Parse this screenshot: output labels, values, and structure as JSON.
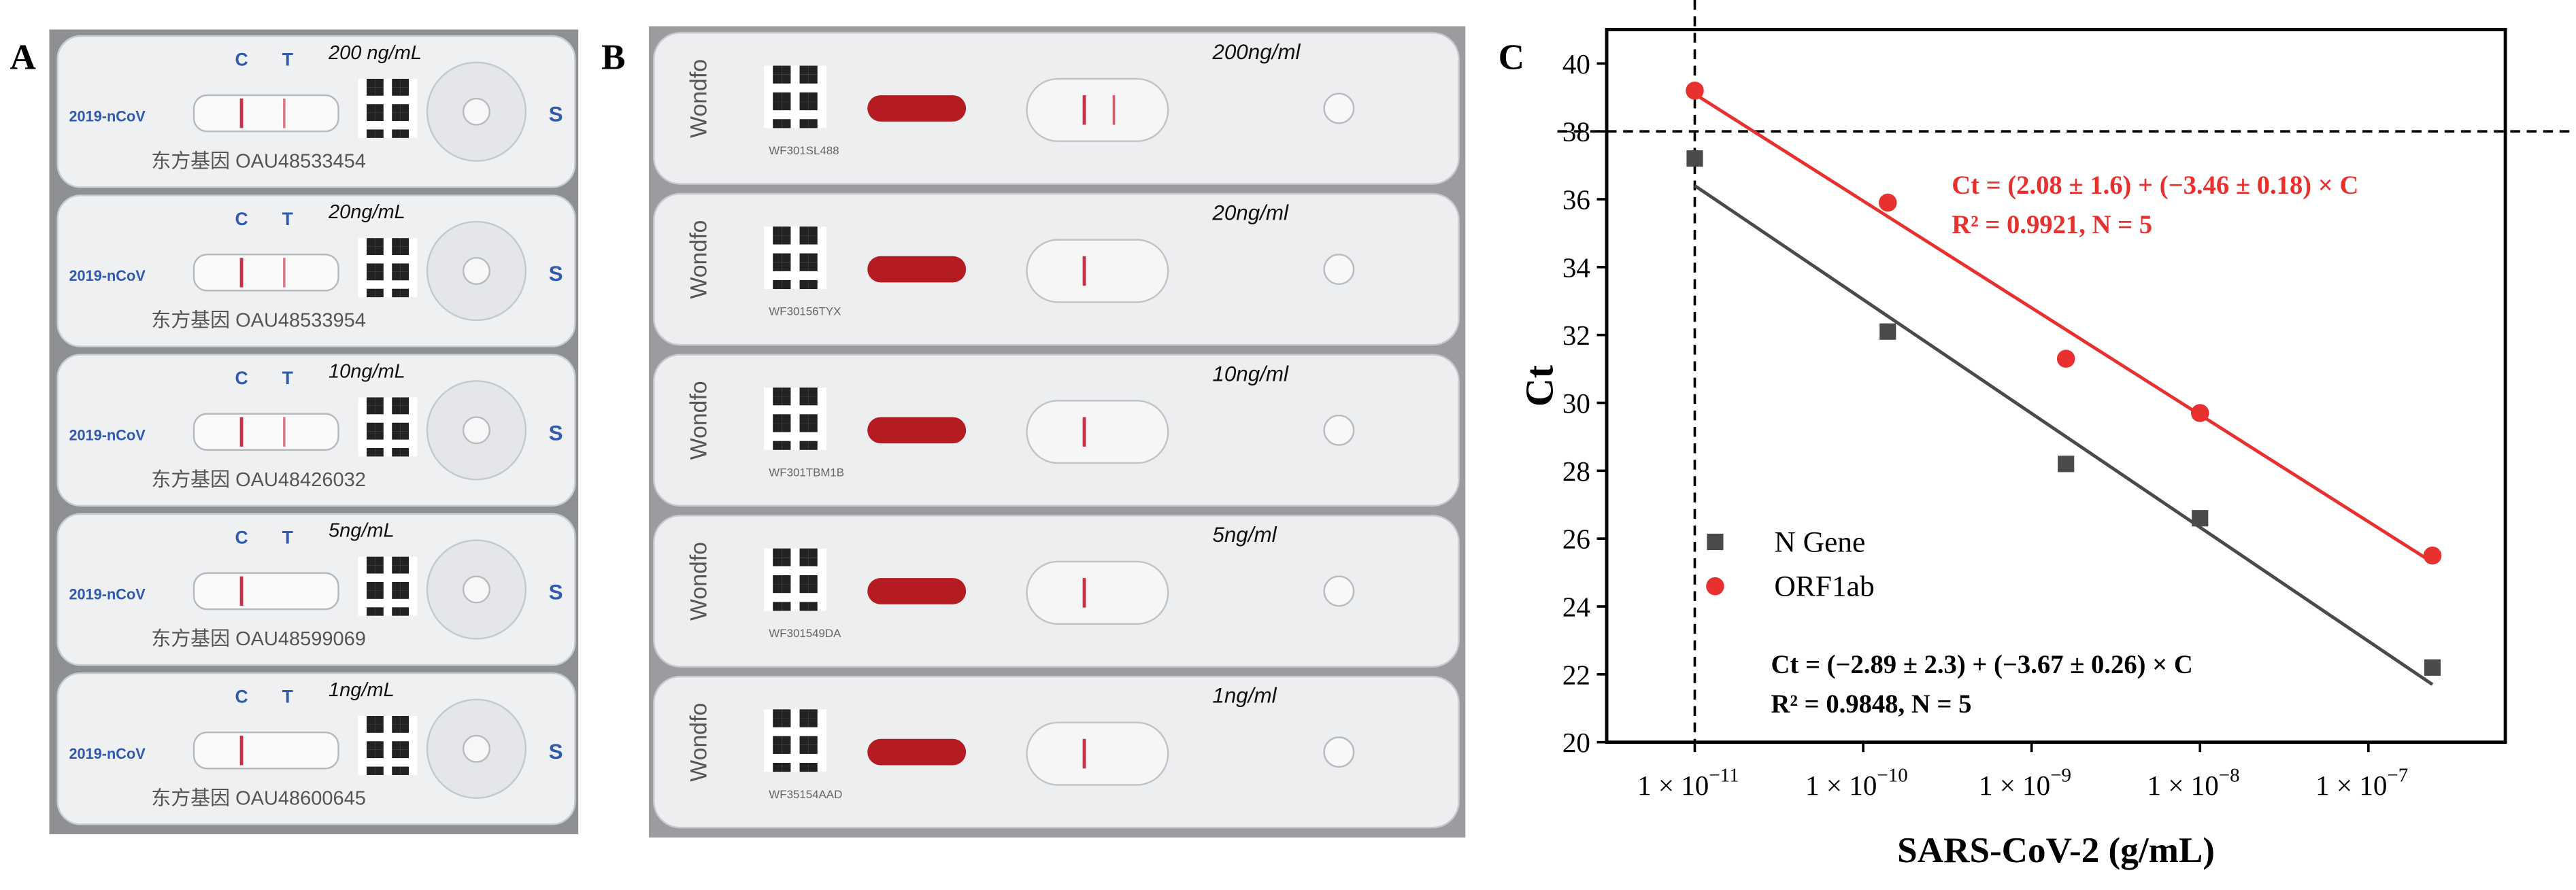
{
  "panel_a": {
    "label": "A",
    "window_labels": [
      "C",
      "T"
    ],
    "port_label": "S",
    "product": "2019-nCoV",
    "strips": [
      {
        "conc": "200 ng/mL",
        "serial": "东方基因 OAU48533454"
      },
      {
        "conc": "20ng/mL",
        "serial": "东方基因 OAU48533954"
      },
      {
        "conc": "10ng/mL",
        "serial": "东方基因 OAU48426032"
      },
      {
        "conc": "5ng/mL",
        "serial": "东方基因 OAU48599069"
      },
      {
        "conc": "1ng/mL",
        "serial": "东方基因 OAU48600645"
      }
    ]
  },
  "panel_b": {
    "label": "B",
    "brand": "Wondfo",
    "strips": [
      {
        "conc": "200ng/ml",
        "serial": "WF301SL488"
      },
      {
        "conc": "20ng/ml",
        "serial": "WF30156TYX"
      },
      {
        "conc": "10ng/ml",
        "serial": "WF301TBM1B"
      },
      {
        "conc": "5ng/ml",
        "serial": "WF301549DA"
      },
      {
        "conc": "1ng/ml",
        "serial": "WF35154AAD"
      }
    ]
  },
  "chart_data": {
    "type": "scatter",
    "panel_label": "C",
    "x_label": "SARS-CoV-2 (g/mL)",
    "y_label": "Ct",
    "xscale": "log",
    "xlim": [
      3e-12,
      6.5e-07
    ],
    "ylim": [
      20,
      41
    ],
    "xticks": [
      {
        "value": 1e-11,
        "label": "1 × 10",
        "exponent": "−11"
      },
      {
        "value": 1e-10,
        "label": "1 × 10",
        "exponent": "−10"
      },
      {
        "value": 1e-09,
        "label": "1 × 10",
        "exponent": "−9"
      },
      {
        "value": 1e-08,
        "label": "1 × 10",
        "exponent": "−8"
      },
      {
        "value": 1e-07,
        "label": "1 × 10",
        "exponent": "−7"
      }
    ],
    "yticks": [
      20,
      22,
      24,
      26,
      28,
      30,
      32,
      34,
      36,
      38,
      40
    ],
    "hlines": [
      38
    ],
    "vlines": [
      1e-11
    ],
    "legend": "lower left",
    "series": [
      {
        "name": "N Gene",
        "color": "#4a4a4a",
        "marker": "square",
        "x": [
          1e-11,
          1.4e-10,
          1.6e-09,
          1e-08,
          2.4e-07
        ],
        "values": [
          37.2,
          32.1,
          28.2,
          26.6,
          22.2
        ],
        "fit": {
          "x": [
            1e-11,
            2.4e-07
          ],
          "values": [
            36.4,
            21.7
          ]
        }
      },
      {
        "name": "ORF1ab",
        "color": "#e8312f",
        "marker": "circle",
        "x": [
          1e-11,
          1.4e-10,
          1.6e-09,
          1e-08,
          2.4e-07
        ],
        "values": [
          39.2,
          35.9,
          31.3,
          29.7,
          25.5
        ],
        "fit": {
          "x": [
            1e-11,
            2.4e-07
          ],
          "values": [
            39.1,
            25.3
          ]
        }
      }
    ],
    "annotations": [
      {
        "text": "Ct = (2.08 ± 1.6) + (−3.46 ± 0.18) × C",
        "color": "#e8312f"
      },
      {
        "text": "R² = 0.9921, N = 5",
        "color": "#e8312f"
      },
      {
        "text": "Ct = (−2.89 ± 2.3) + (−3.67 ± 0.26) × C",
        "color": "#000000"
      },
      {
        "text": "R² = 0.9848, N = 5",
        "color": "#000000"
      }
    ]
  }
}
